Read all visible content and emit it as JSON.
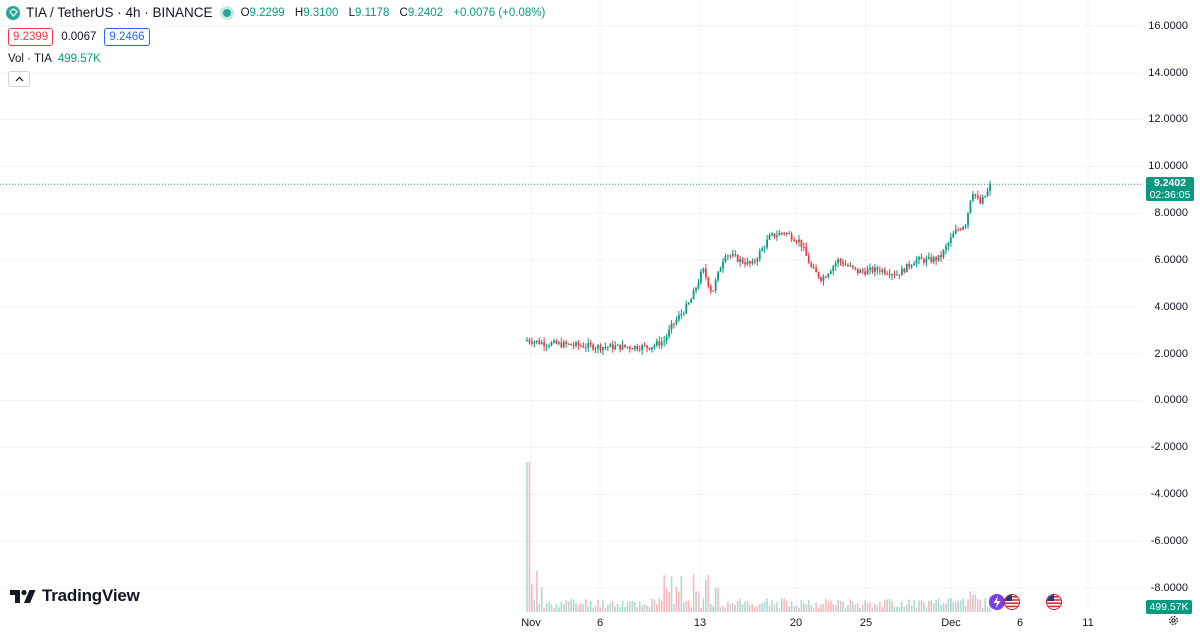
{
  "header": {
    "title": "TIA / TetherUS · 4h · BINANCE",
    "ohlc": [
      {
        "label": "O",
        "value": "9.2299"
      },
      {
        "label": "H",
        "value": "9.3100"
      },
      {
        "label": "L",
        "value": "9.1178"
      },
      {
        "label": "C",
        "value": "9.2402"
      },
      {
        "label": "",
        "value": "+0.0076 (+0.08%)"
      }
    ]
  },
  "trade": {
    "sell": "9.2399",
    "spread": "0.0067",
    "buy": "9.2466"
  },
  "volume_indicator": {
    "label": "Vol · TIA",
    "value": "499.57K"
  },
  "brand": {
    "name": "TradingView"
  },
  "price_axis": {
    "labels": [
      "16.0000",
      "14.0000",
      "12.0000",
      "10.0000",
      "8.0000",
      "6.0000",
      "4.0000",
      "2.0000",
      "0.0000",
      "-2.0000",
      "-4.0000",
      "-6.0000",
      "-8.0000"
    ]
  },
  "time_axis": {
    "labels": [
      "Nov",
      "6",
      "13",
      "20",
      "25",
      "Dec",
      "6",
      "11"
    ]
  },
  "last_price": {
    "price": "9.2402",
    "countdown": "02:36:05"
  },
  "volume_tag": "499.57K",
  "colors": {
    "up": "#089981",
    "down": "#f23645",
    "grid": "#f0f3fa"
  },
  "chart_data": {
    "type": "candlestick",
    "title": "TIA / TetherUS · 4h · BINANCE",
    "ylim": [
      -8,
      16
    ],
    "price_anchors": {
      "dates": [
        "Nov",
        "6",
        "13",
        "20",
        "25",
        "Dec",
        "6",
        "11"
      ],
      "points": [
        {
          "x": "Nov",
          "close": 2.3
        },
        {
          "x": "6",
          "close": 2.3
        },
        {
          "x": "13",
          "close": 5.5
        },
        {
          "x": "20",
          "close": 6.5
        },
        {
          "x": "25",
          "close": 5.6
        },
        {
          "x": "Dec",
          "close": 6.8
        }
      ],
      "last_close": 9.2402
    }
  }
}
